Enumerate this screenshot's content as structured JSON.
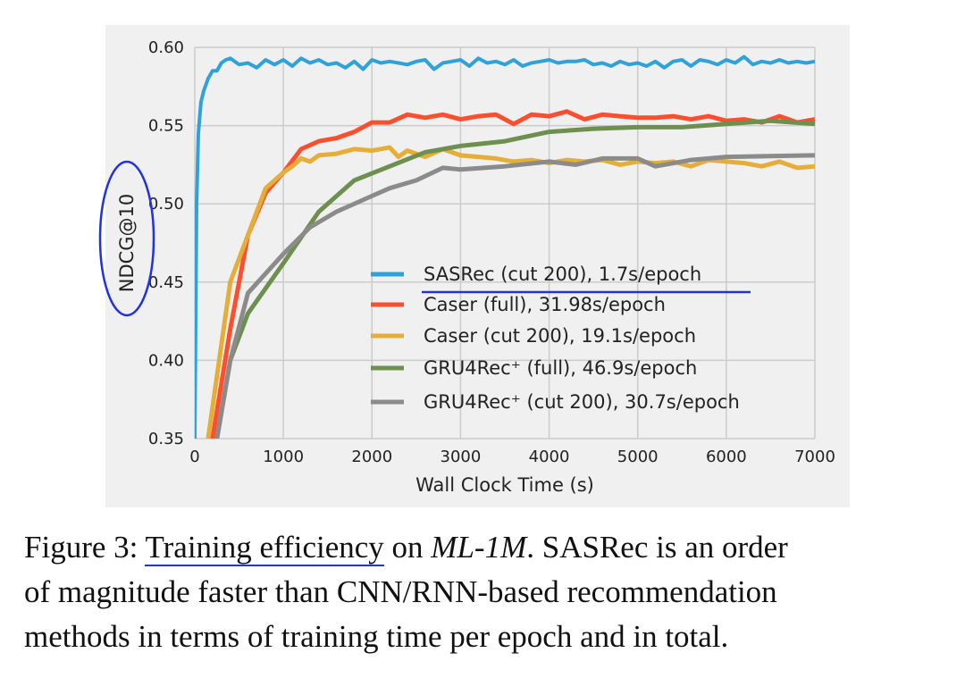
{
  "chart_data": {
    "type": "line",
    "xlabel": "Wall Clock Time (s)",
    "ylabel": "NDCG@10",
    "xlim": [
      0,
      7000
    ],
    "ylim": [
      0.35,
      0.6
    ],
    "xticks": [
      "0",
      "1000",
      "2000",
      "3000",
      "4000",
      "5000",
      "6000",
      "7000"
    ],
    "yticks": [
      "0.35",
      "0.40",
      "0.45",
      "0.50",
      "0.55",
      "0.60"
    ],
    "grid": true,
    "legend_placement": "lower-right",
    "background": "#f0f0f0",
    "series": [
      {
        "name": "SASRec (cut 200), 1.7s/epoch",
        "color": "#30a2da",
        "x": [
          0,
          20,
          40,
          70,
          100,
          150,
          200,
          250,
          300,
          350,
          400,
          500,
          600,
          700,
          800,
          900,
          1000,
          1100,
          1200,
          1300,
          1400,
          1500,
          1600,
          1700,
          1800,
          1900,
          2000,
          2100,
          2200,
          2300,
          2400,
          2500,
          2600,
          2700,
          2800,
          2900,
          3000,
          3100,
          3200,
          3300,
          3400,
          3500,
          3600,
          3700,
          3800,
          3900,
          4000,
          4100,
          4200,
          4300,
          4400,
          4500,
          4600,
          4700,
          4800,
          4900,
          5000,
          5100,
          5200,
          5300,
          5400,
          5500,
          5600,
          5700,
          5800,
          5900,
          6000,
          6100,
          6200,
          6300,
          6400,
          6500,
          6600,
          6700,
          6800,
          6900,
          7000
        ],
        "y": [
          0.35,
          0.5,
          0.545,
          0.565,
          0.572,
          0.58,
          0.585,
          0.585,
          0.59,
          0.592,
          0.593,
          0.589,
          0.59,
          0.587,
          0.592,
          0.589,
          0.592,
          0.588,
          0.593,
          0.59,
          0.592,
          0.589,
          0.59,
          0.587,
          0.591,
          0.586,
          0.592,
          0.59,
          0.591,
          0.59,
          0.589,
          0.591,
          0.592,
          0.586,
          0.59,
          0.591,
          0.592,
          0.588,
          0.593,
          0.59,
          0.591,
          0.589,
          0.592,
          0.588,
          0.59,
          0.591,
          0.592,
          0.59,
          0.591,
          0.591,
          0.592,
          0.589,
          0.59,
          0.588,
          0.591,
          0.589,
          0.59,
          0.588,
          0.591,
          0.587,
          0.591,
          0.592,
          0.588,
          0.592,
          0.591,
          0.589,
          0.592,
          0.59,
          0.594,
          0.589,
          0.591,
          0.59,
          0.592,
          0.59,
          0.591,
          0.59,
          0.591
        ]
      },
      {
        "name": "Caser (full), 31.98s/epoch",
        "color": "#fc4f30",
        "x": [
          200,
          400,
          600,
          800,
          1000,
          1200,
          1400,
          1600,
          1800,
          2000,
          2200,
          2400,
          2600,
          2800,
          3000,
          3200,
          3400,
          3600,
          3800,
          4000,
          4200,
          4400,
          4600,
          4800,
          5000,
          5200,
          5400,
          5600,
          5800,
          6000,
          6200,
          6400,
          6600,
          6800,
          7000
        ],
        "y": [
          0.35,
          0.42,
          0.48,
          0.507,
          0.52,
          0.535,
          0.54,
          0.542,
          0.546,
          0.552,
          0.552,
          0.557,
          0.555,
          0.557,
          0.554,
          0.556,
          0.557,
          0.551,
          0.557,
          0.556,
          0.559,
          0.554,
          0.557,
          0.556,
          0.555,
          0.555,
          0.556,
          0.554,
          0.556,
          0.553,
          0.554,
          0.552,
          0.556,
          0.552,
          0.554
        ]
      },
      {
        "name": "Caser (cut 200), 19.1s/epoch",
        "color": "#e5ae38",
        "x": [
          150,
          400,
          600,
          800,
          1000,
          1100,
          1200,
          1300,
          1400,
          1600,
          1800,
          2000,
          2200,
          2300,
          2400,
          2600,
          2800,
          3000,
          3200,
          3400,
          3600,
          3800,
          4000,
          4200,
          4400,
          4600,
          4800,
          5000,
          5200,
          5400,
          5600,
          5800,
          6000,
          6200,
          6400,
          6600,
          6800,
          7000
        ],
        "y": [
          0.35,
          0.45,
          0.48,
          0.51,
          0.52,
          0.524,
          0.529,
          0.527,
          0.531,
          0.532,
          0.535,
          0.534,
          0.536,
          0.53,
          0.534,
          0.53,
          0.535,
          0.531,
          0.53,
          0.529,
          0.527,
          0.528,
          0.526,
          0.528,
          0.527,
          0.528,
          0.525,
          0.527,
          0.526,
          0.527,
          0.524,
          0.528,
          0.527,
          0.526,
          0.524,
          0.527,
          0.523,
          0.524
        ]
      },
      {
        "name": "GRU4Rec⁺ (full), 46.9s/epoch",
        "color": "#6d904f",
        "x": [
          250,
          400,
          600,
          1000,
          1400,
          1800,
          2200,
          2600,
          3000,
          3500,
          4000,
          4500,
          5000,
          5500,
          6000,
          6500,
          7000
        ],
        "y": [
          0.35,
          0.4,
          0.43,
          0.462,
          0.495,
          0.515,
          0.524,
          0.533,
          0.537,
          0.54,
          0.546,
          0.548,
          0.549,
          0.549,
          0.551,
          0.553,
          0.551
        ]
      },
      {
        "name": "GRU4Rec⁺ (cut 200), 30.7s/epoch",
        "color": "#8b8b8b",
        "x": [
          250,
          400,
          600,
          1000,
          1300,
          1600,
          2000,
          2200,
          2500,
          2800,
          3000,
          3500,
          4000,
          4300,
          4600,
          5000,
          5200,
          5600,
          6000,
          7000
        ],
        "y": [
          0.35,
          0.4,
          0.443,
          0.468,
          0.485,
          0.495,
          0.505,
          0.51,
          0.515,
          0.523,
          0.522,
          0.524,
          0.527,
          0.525,
          0.529,
          0.529,
          0.524,
          0.528,
          0.53,
          0.531
        ]
      }
    ],
    "annotation_color": "#2233dd"
  },
  "caption": {
    "prefix": "Figure 3: ",
    "underlined": "Training efficiency",
    "mid": " on ",
    "italic": "ML-1M",
    "rest1": ". SASRec is an order",
    "line2": "of magnitude faster than CNN/RNN-based recommendation",
    "line3": "methods in terms of training time per epoch and in total."
  }
}
